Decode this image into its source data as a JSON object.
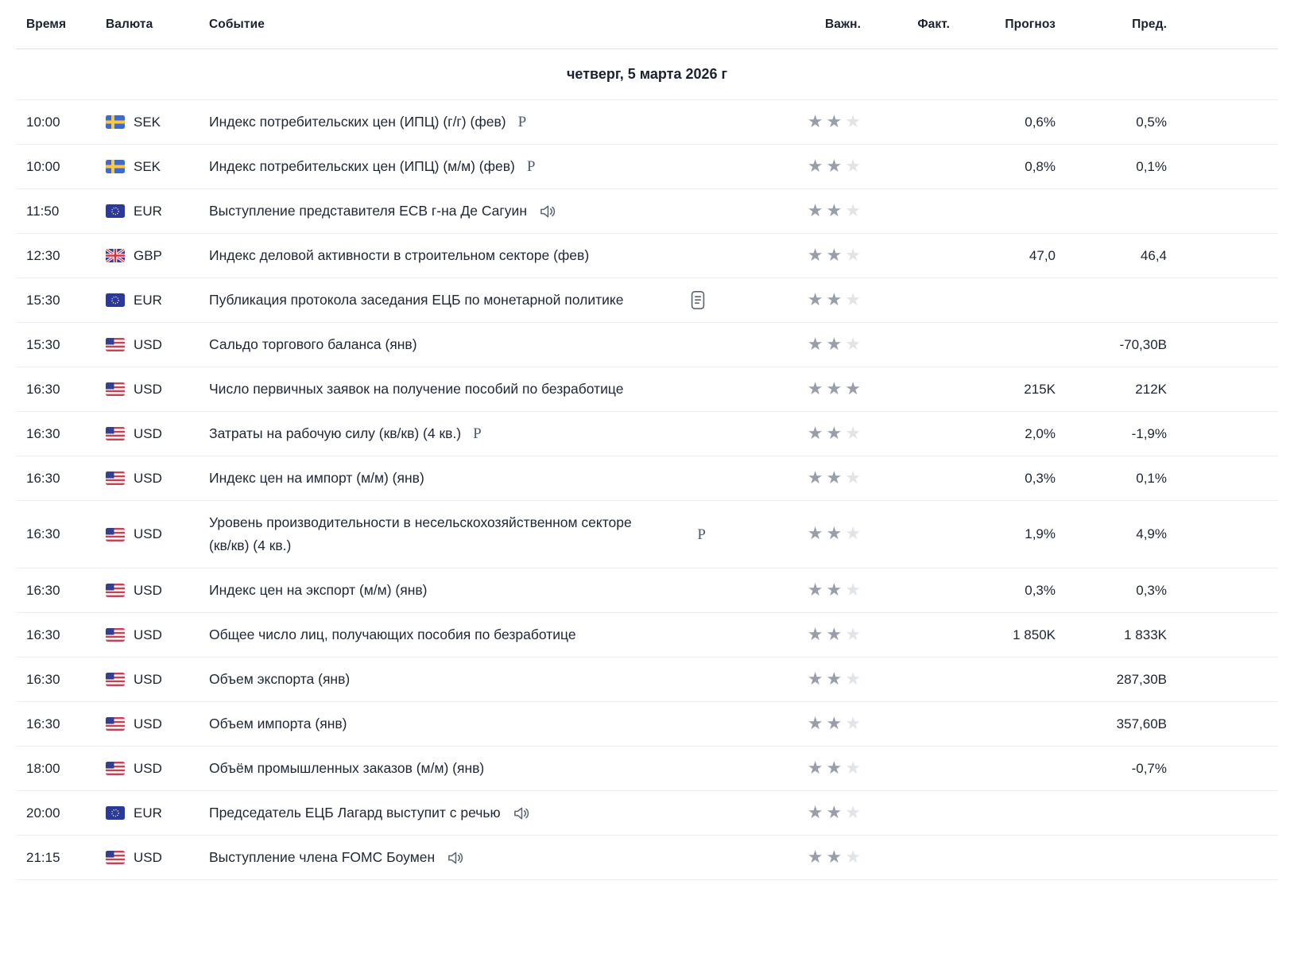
{
  "colors": {
    "text": "#1d2534",
    "icon": "#5a6472",
    "separator": "#e9edf3",
    "header_separator": "#dfe4ec",
    "star_filled": "#989fab",
    "star_empty": "#e0e3e8",
    "flag_sweden_blue": "#3d6ad1",
    "flag_sweden_yellow": "#f6c845",
    "flag_eu_blue": "#2a3a9c",
    "flag_uk_blue": "#2b3f9e",
    "flag_us_red": "#c94251",
    "flag_us_blue": "#31418f"
  },
  "icons": {
    "preliminary_label": "P",
    "speech": "speaker-icon",
    "report": "report-icon"
  },
  "table": {
    "columns": {
      "time": "Время",
      "currency": "Валюта",
      "event": "Событие",
      "importance": "Важн.",
      "actual": "Факт.",
      "forecast": "Прогноз",
      "previous": "Пред."
    },
    "date_header": "четверг, 5 марта 2026 г",
    "importance_max": 3,
    "rows": [
      {
        "time": "10:00",
        "currency": "SEK",
        "flag": "se",
        "event": "Индекс потребительских цен (ИПЦ) (г/г) (фев)",
        "icon": "preliminary",
        "icon_position": "inline",
        "importance": 2,
        "actual": "",
        "forecast": "0,6%",
        "previous": "0,5%"
      },
      {
        "time": "10:00",
        "currency": "SEK",
        "flag": "se",
        "event": "Индекс потребительских цен (ИПЦ) (м/м) (фев)",
        "icon": "preliminary",
        "icon_position": "inline",
        "importance": 2,
        "actual": "",
        "forecast": "0,8%",
        "previous": "0,1%"
      },
      {
        "time": "11:50",
        "currency": "EUR",
        "flag": "eu",
        "event": "Выступление представителя ECB г-на Де Сагуин",
        "icon": "speech",
        "icon_position": "inline",
        "importance": 2,
        "actual": "",
        "forecast": "",
        "previous": ""
      },
      {
        "time": "12:30",
        "currency": "GBP",
        "flag": "gb",
        "event": "Индекс деловой активности в строительном секторе (фев)",
        "icon": null,
        "icon_position": "inline",
        "importance": 2,
        "actual": "",
        "forecast": "47,0",
        "previous": "46,4"
      },
      {
        "time": "15:30",
        "currency": "EUR",
        "flag": "eu",
        "event": "Публикация протокола заседания ЕЦБ по монетарной политике",
        "icon": "report",
        "icon_position": "right",
        "importance": 2,
        "actual": "",
        "forecast": "",
        "previous": ""
      },
      {
        "time": "15:30",
        "currency": "USD",
        "flag": "us",
        "event": "Сальдо торгового баланса (янв)",
        "icon": null,
        "icon_position": "inline",
        "importance": 2,
        "actual": "",
        "forecast": "",
        "previous": "-70,30B"
      },
      {
        "time": "16:30",
        "currency": "USD",
        "flag": "us",
        "event": "Число первичных заявок на получение пособий по безработице",
        "icon": null,
        "icon_position": "inline",
        "importance": 3,
        "actual": "",
        "forecast": "215K",
        "previous": "212K"
      },
      {
        "time": "16:30",
        "currency": "USD",
        "flag": "us",
        "event": "Затраты на рабочую силу (кв/кв) (4 кв.)",
        "icon": "preliminary",
        "icon_position": "inline",
        "importance": 2,
        "actual": "",
        "forecast": "2,0%",
        "previous": "-1,9%"
      },
      {
        "time": "16:30",
        "currency": "USD",
        "flag": "us",
        "event": "Индекс цен на импорт (м/м) (янв)",
        "icon": null,
        "icon_position": "inline",
        "importance": 2,
        "actual": "",
        "forecast": "0,3%",
        "previous": "0,1%"
      },
      {
        "time": "16:30",
        "currency": "USD",
        "flag": "us",
        "event": "Уровень производительности в несельскохозяйственном секторе (кв/кв) (4 кв.)",
        "icon": "preliminary",
        "icon_position": "right",
        "importance": 2,
        "actual": "",
        "forecast": "1,9%",
        "previous": "4,9%"
      },
      {
        "time": "16:30",
        "currency": "USD",
        "flag": "us",
        "event": "Индекс цен на экспорт (м/м) (янв)",
        "icon": null,
        "icon_position": "inline",
        "importance": 2,
        "actual": "",
        "forecast": "0,3%",
        "previous": "0,3%"
      },
      {
        "time": "16:30",
        "currency": "USD",
        "flag": "us",
        "event": "Общее число лиц, получающих пособия по безработице",
        "icon": null,
        "icon_position": "inline",
        "importance": 2,
        "actual": "",
        "forecast": "1 850K",
        "previous": "1 833K"
      },
      {
        "time": "16:30",
        "currency": "USD",
        "flag": "us",
        "event": "Объем экспорта (янв)",
        "icon": null,
        "icon_position": "inline",
        "importance": 2,
        "actual": "",
        "forecast": "",
        "previous": "287,30B"
      },
      {
        "time": "16:30",
        "currency": "USD",
        "flag": "us",
        "event": "Объем импорта (янв)",
        "icon": null,
        "icon_position": "inline",
        "importance": 2,
        "actual": "",
        "forecast": "",
        "previous": "357,60B"
      },
      {
        "time": "18:00",
        "currency": "USD",
        "flag": "us",
        "event": "Объём промышленных заказов (м/м) (янв)",
        "icon": null,
        "icon_position": "inline",
        "importance": 2,
        "actual": "",
        "forecast": "",
        "previous": "-0,7%"
      },
      {
        "time": "20:00",
        "currency": "EUR",
        "flag": "eu",
        "event": "Председатель ЕЦБ Лагард выступит с речью",
        "icon": "speech",
        "icon_position": "inline",
        "importance": 2,
        "actual": "",
        "forecast": "",
        "previous": ""
      },
      {
        "time": "21:15",
        "currency": "USD",
        "flag": "us",
        "event": "Выступление члена FOMC Боумен",
        "icon": "speech",
        "icon_position": "inline",
        "importance": 2,
        "actual": "",
        "forecast": "",
        "previous": ""
      }
    ]
  }
}
